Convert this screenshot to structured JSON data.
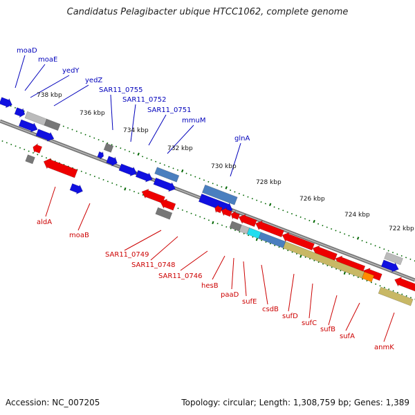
{
  "title": "Candidatus Pelagibacter ubique HTCC1062, complete genome",
  "accession": "Accession: NC_007205",
  "topology": "Topology: circular; Length: 1,308,759 bp; Genes: 1,389",
  "colors": {
    "forward_gene": "#1010e0",
    "reverse_gene": "#ee0000",
    "gray_feature": "#777777",
    "light_gray_feature": "#bbbbbb",
    "steelblue_feature": "#4a7fbf",
    "cyan_feature": "#22ddee",
    "olive_feature": "#c8b865",
    "orange_feature": "#ff8c00",
    "backbone": "#888888",
    "tick_color": "#006600"
  },
  "kbp_labels": [
    "738 kbp",
    "736 kbp",
    "734 kbp",
    "732 kbp",
    "730 kbp",
    "728 kbp",
    "726 kbp",
    "724 kbp",
    "722 kbp"
  ],
  "top_genes": [
    "moaD",
    "moaE",
    "yedY",
    "yedZ",
    "SAR11_0755",
    "SAR11_0752",
    "SAR11_0751",
    "mmuM",
    "glnA"
  ],
  "bottom_genes": [
    "aldA",
    "moaB",
    "SAR11_0749",
    "SAR11_0748",
    "SAR11_0746",
    "hesB",
    "paaD",
    "sufE",
    "csdB",
    "sufD",
    "sufC",
    "sufB",
    "sufA",
    "anmK"
  ]
}
